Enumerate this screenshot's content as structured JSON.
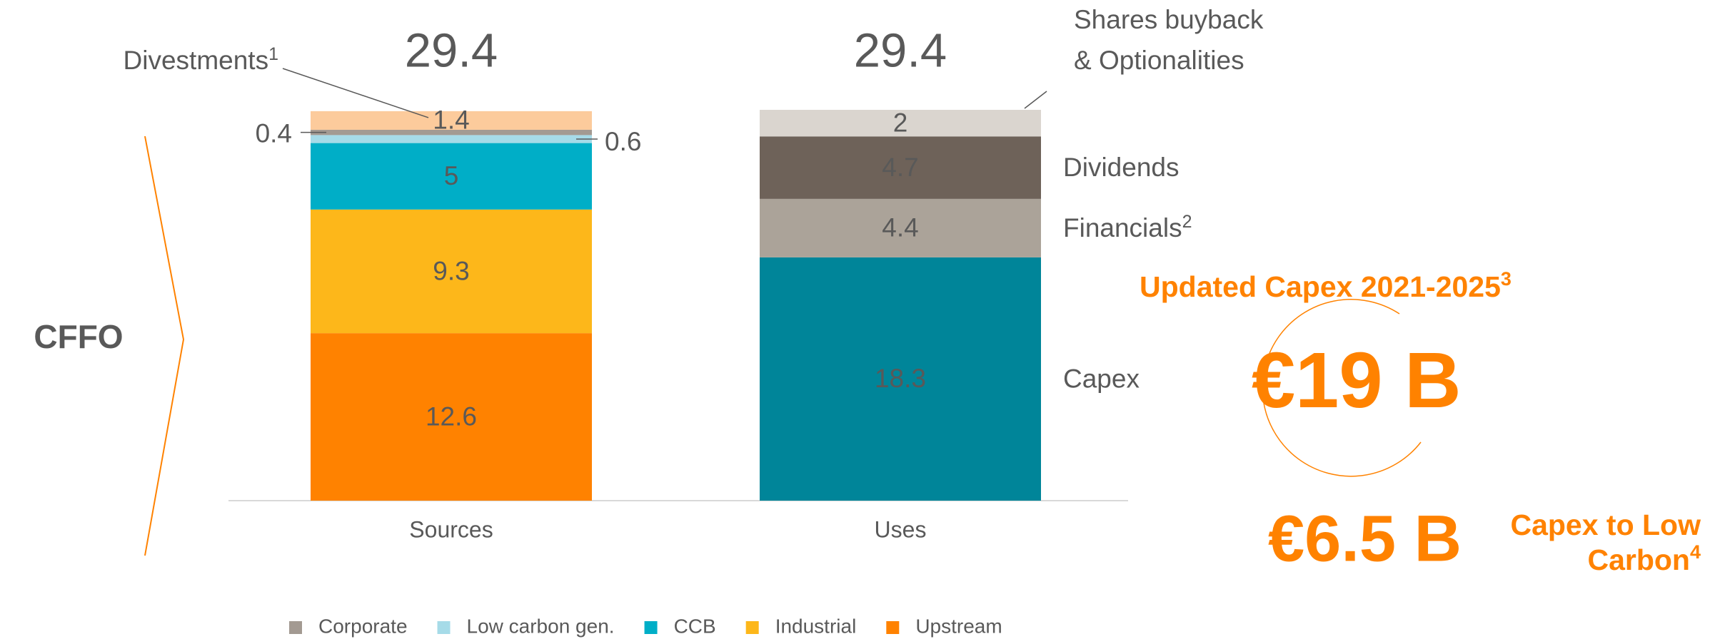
{
  "chart_data": {
    "type": "bar",
    "stacked": true,
    "categories": [
      "Sources",
      "Uses"
    ],
    "totals": [
      29.4,
      29.4
    ],
    "ylim": [
      0,
      29.4
    ],
    "series": [
      {
        "name": "Upstream",
        "color": "#ff8200",
        "values": [
          12.6,
          null
        ],
        "in_legend": true
      },
      {
        "name": "Industrial",
        "color": "#fdb71a",
        "values": [
          9.3,
          null
        ],
        "in_legend": true
      },
      {
        "name": "CCB",
        "color": "#00aec7",
        "values": [
          5.0,
          null
        ],
        "in_legend": true
      },
      {
        "name": "Low carbon gen.",
        "color": "#a6dbe8",
        "values": [
          0.6,
          null
        ],
        "in_legend": true
      },
      {
        "name": "Corporate",
        "color": "#a39a92",
        "values": [
          0.4,
          null
        ],
        "in_legend": true
      },
      {
        "name": "Divestments",
        "footnote": "1",
        "color": "#fccb9c",
        "values": [
          1.4,
          null
        ],
        "in_legend": false
      },
      {
        "name": "Capex",
        "color": "#008599",
        "values": [
          null,
          18.3
        ],
        "in_legend": false
      },
      {
        "name": "Financials",
        "footnote": "2",
        "color": "#aba399",
        "values": [
          null,
          4.4
        ],
        "in_legend": false
      },
      {
        "name": "Dividends",
        "color": "#6e6259",
        "values": [
          null,
          4.7
        ],
        "in_legend": false
      },
      {
        "name": "Shares buyback & Optionalities",
        "color": "#dad5cf",
        "values": [
          null,
          2.0
        ],
        "in_legend": false
      }
    ],
    "annotations": {
      "cffo": "CFFO",
      "capex_title": "Updated Capex 2021-2025",
      "capex_title_footnote": "3",
      "capex_value": "€19 B",
      "low_carbon_value": "€6.5 B",
      "low_carbon_label": [
        "Capex to Low",
        "Carbon"
      ],
      "low_carbon_footnote": "4"
    }
  }
}
